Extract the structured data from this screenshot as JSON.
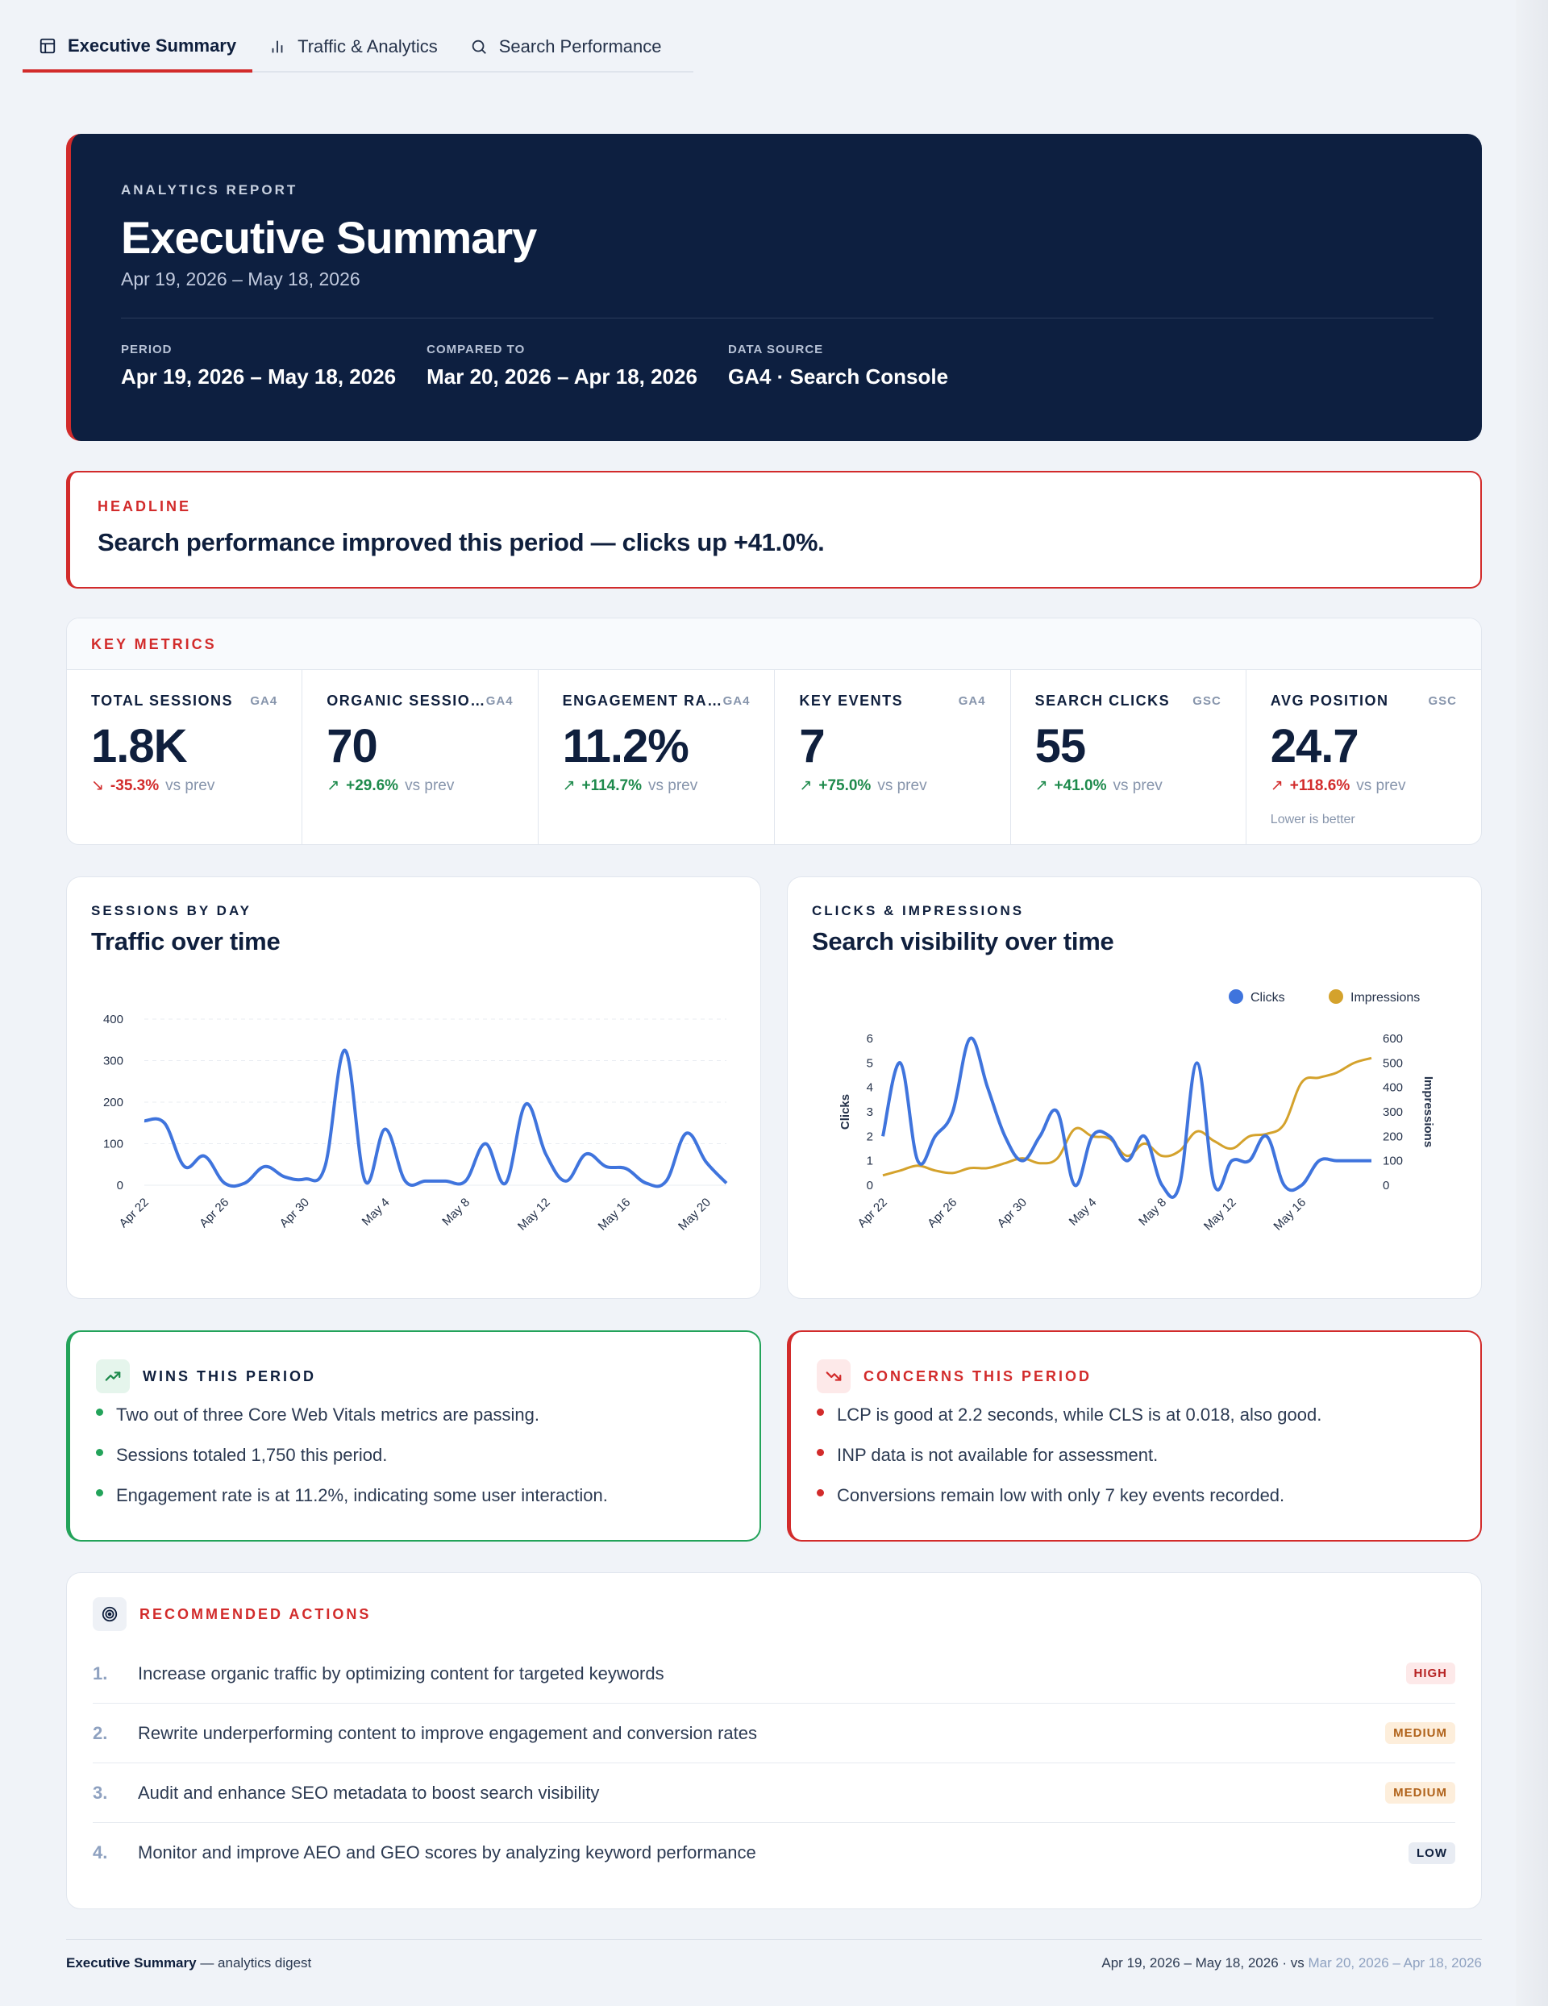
{
  "tabs": [
    {
      "label": "Executive Summary",
      "icon": "layout-icon",
      "active": true
    },
    {
      "label": "Traffic & Analytics",
      "icon": "bar-chart-icon",
      "active": false
    },
    {
      "label": "Search Performance",
      "icon": "search-icon",
      "active": false
    }
  ],
  "hero": {
    "eyebrow": "ANALYTICS REPORT",
    "title": "Executive Summary",
    "date": "Apr 19, 2026 – May 18, 2026",
    "meta": [
      {
        "key": "PERIOD",
        "value": "Apr 19, 2026 – May 18, 2026"
      },
      {
        "key": "COMPARED TO",
        "value": "Mar 20, 2026 – Apr 18, 2026"
      },
      {
        "key": "DATA SOURCE",
        "value": "GA4 · Search Console"
      }
    ]
  },
  "headline": {
    "eyebrow": "HEADLINE",
    "text": "Search performance improved this period — clicks up +41.0%."
  },
  "key_metrics": {
    "eyebrow": "KEY METRICS",
    "items": [
      {
        "label": "TOTAL SESSIONS",
        "source": "GA4",
        "value": "1.8K",
        "delta": "-35.3%",
        "direction": "down",
        "vs": "vs prev",
        "note": ""
      },
      {
        "label": "ORGANIC SESSIO…",
        "source": "GA4",
        "value": "70",
        "delta": "+29.6%",
        "direction": "up",
        "vs": "vs prev",
        "note": ""
      },
      {
        "label": "ENGAGEMENT RA…",
        "source": "GA4",
        "value": "11.2%",
        "delta": "+114.7%",
        "direction": "up",
        "vs": "vs prev",
        "note": ""
      },
      {
        "label": "KEY EVENTS",
        "source": "GA4",
        "value": "7",
        "delta": "+75.0%",
        "direction": "up",
        "vs": "vs prev",
        "note": ""
      },
      {
        "label": "SEARCH CLICKS",
        "source": "GSC",
        "value": "55",
        "delta": "+41.0%",
        "direction": "up",
        "vs": "vs prev",
        "note": ""
      },
      {
        "label": "AVG POSITION",
        "source": "GSC",
        "value": "24.7",
        "delta": "+118.6%",
        "direction": "down",
        "vs": "vs prev",
        "note": "Lower is better"
      }
    ]
  },
  "traffic_card": {
    "eyebrow": "SESSIONS BY DAY",
    "title": "Traffic over time"
  },
  "search_card": {
    "eyebrow": "CLICKS & IMPRESSIONS",
    "title": "Search visibility over time"
  },
  "chart_data": [
    {
      "type": "line",
      "x": [
        "Apr 22",
        "Apr 23",
        "Apr 24",
        "Apr 25",
        "Apr 26",
        "Apr 27",
        "Apr 28",
        "Apr 29",
        "Apr 30",
        "May 1",
        "May 2",
        "May 3",
        "May 4",
        "May 5",
        "May 6",
        "May 7",
        "May 8",
        "May 9",
        "May 10",
        "May 11",
        "May 12",
        "May 13",
        "May 14",
        "May 15",
        "May 16",
        "May 17",
        "May 18",
        "May 19",
        "May 20",
        "May 21"
      ],
      "x_tick_labels": [
        "Apr 22",
        "Apr 26",
        "Apr 30",
        "May 4",
        "May 8",
        "May 12",
        "May 16",
        "May 20"
      ],
      "series": [
        {
          "values": [
            155,
            150,
            45,
            70,
            5,
            5,
            45,
            20,
            15,
            45,
            325,
            10,
            135,
            10,
            10,
            10,
            10,
            100,
            5,
            195,
            75,
            10,
            75,
            45,
            40,
            5,
            10,
            125,
            55,
            5
          ]
        }
      ],
      "ylim": [
        0,
        400
      ],
      "yticks": [
        0,
        100,
        200,
        300,
        400
      ],
      "grid": true,
      "color": "#3f74dd"
    },
    {
      "type": "line",
      "x": [
        "Apr 22",
        "Apr 23",
        "Apr 24",
        "Apr 25",
        "Apr 26",
        "Apr 27",
        "Apr 28",
        "Apr 29",
        "Apr 30",
        "May 1",
        "May 2",
        "May 3",
        "May 4",
        "May 5",
        "May 6",
        "May 7",
        "May 8",
        "May 9",
        "May 10",
        "May 11",
        "May 12",
        "May 13",
        "May 14",
        "May 15",
        "May 16",
        "May 17",
        "May 18",
        "May 19",
        "May 20"
      ],
      "x_tick_labels": [
        "Apr 22",
        "Apr 26",
        "Apr 30",
        "May 4",
        "May 8",
        "May 12",
        "May 16"
      ],
      "series": [
        {
          "name": "Clicks",
          "axis": "left",
          "color": "#3f74dd",
          "values": [
            2,
            5,
            1,
            2,
            3,
            6,
            4,
            2,
            1,
            2,
            3,
            0,
            2,
            2,
            1,
            2,
            0,
            0,
            5,
            0,
            1,
            1,
            2,
            0,
            0,
            1,
            1,
            1,
            1
          ]
        },
        {
          "name": "Impressions",
          "axis": "right",
          "color": "#d4a22c",
          "values": [
            40,
            60,
            80,
            60,
            50,
            70,
            70,
            90,
            110,
            90,
            110,
            230,
            200,
            190,
            120,
            170,
            120,
            140,
            220,
            180,
            150,
            200,
            210,
            250,
            420,
            440,
            460,
            500,
            520
          ]
        }
      ],
      "ylabel_left": "Clicks",
      "ylabel_right": "Impressions",
      "ylim_left": [
        0,
        6
      ],
      "ylim_right": [
        0,
        600
      ],
      "yticks_left": [
        0,
        1,
        2,
        3,
        4,
        5,
        6
      ],
      "yticks_right": [
        0,
        100,
        200,
        300,
        400,
        500,
        600
      ],
      "legend": "top-right",
      "grid": false
    }
  ],
  "wins": {
    "eyebrow": "WINS THIS PERIOD",
    "items": [
      "Two out of three Core Web Vitals metrics are passing.",
      "Sessions totaled 1,750 this period.",
      "Engagement rate is at 11.2%, indicating some user interaction."
    ]
  },
  "concerns": {
    "eyebrow": "CONCERNS THIS PERIOD",
    "items": [
      "LCP is good at 2.2 seconds, while CLS is at 0.018, also good.",
      "INP data is not available for assessment.",
      "Conversions remain low with only 7 key events recorded."
    ]
  },
  "actions": {
    "eyebrow": "RECOMMENDED ACTIONS",
    "items": [
      {
        "num": "1.",
        "text": "Increase organic traffic by optimizing content for targeted keywords",
        "priority": "HIGH",
        "level": "high"
      },
      {
        "num": "2.",
        "text": "Rewrite underperforming content to improve engagement and conversion rates",
        "priority": "MEDIUM",
        "level": "medium"
      },
      {
        "num": "3.",
        "text": "Audit and enhance SEO metadata to boost search visibility",
        "priority": "MEDIUM",
        "level": "medium"
      },
      {
        "num": "4.",
        "text": "Monitor and improve AEO and GEO scores by analyzing keyword performance",
        "priority": "LOW",
        "level": "low"
      }
    ]
  },
  "footer": {
    "title": "Executive Summary",
    "subtitle": "— analytics digest",
    "period": "Apr 19, 2026 – May 18, 2026 · vs",
    "compare": "Mar 20, 2026 – Apr 18, 2026"
  },
  "colors": {
    "accent": "#d22b2b",
    "navy": "#0d1f40",
    "win": "#23a35a",
    "clicks": "#3f74dd",
    "impressions": "#d4a22c"
  }
}
